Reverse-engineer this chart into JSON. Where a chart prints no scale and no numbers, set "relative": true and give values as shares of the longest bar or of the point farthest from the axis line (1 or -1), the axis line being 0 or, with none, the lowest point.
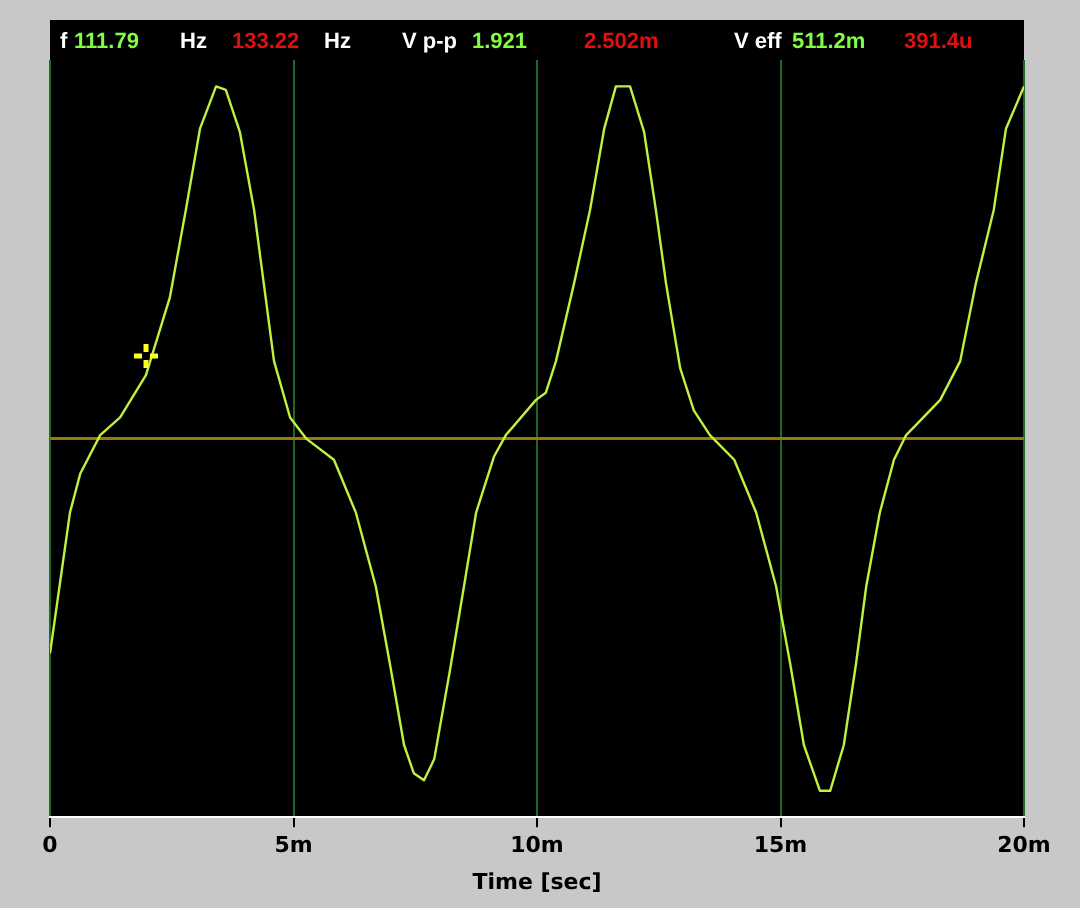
{
  "chart_data": {
    "type": "line",
    "relative": true,
    "xlabel": "Time [sec]",
    "annotations": [
      "f",
      "111.79",
      "Hz",
      "133.22",
      "Hz",
      "V p-p",
      "1.921",
      "2.502m",
      "V eff",
      "511.2m",
      "391.4u"
    ],
    "xlim": [
      0,
      20
    ],
    "xticks": [
      0,
      {
        "value": 5,
        "label": "5m"
      },
      {
        "value": 10,
        "label": "10m"
      },
      {
        "value": 15,
        "label": "15m"
      },
      {
        "value": 20,
        "label": "20m"
      }
    ],
    "grid": "x",
    "marker": "none",
    "ref_lines": [
      {
        "axis": "y",
        "value": 0,
        "color": "#9a7a10"
      }
    ],
    "line_style": "solid",
    "series": [
      {
        "color": "#c0f040",
        "x": [
          0,
          0.205,
          0.41,
          0.62,
          1.03,
          1.44,
          1.97,
          2.46,
          2.79,
          3.08,
          3.41,
          3.61,
          3.9,
          4.19,
          4.39,
          4.6,
          4.93,
          5.26,
          5.83,
          6.28,
          6.69,
          6.98,
          7.27,
          7.47,
          7.68,
          7.89,
          8.21,
          8.5,
          8.75,
          9.12,
          9.36,
          9.98,
          10.18,
          10.39,
          10.76,
          11.09,
          11.38,
          11.62,
          11.91,
          12.2,
          12.44,
          12.65,
          12.94,
          13.22,
          13.55,
          14.05,
          14.5,
          14.91,
          15.2,
          15.48,
          15.81,
          16.02,
          16.3,
          16.55,
          16.76,
          17.04,
          17.33,
          17.58,
          18.28,
          18.69,
          19.01,
          19.38,
          19.63,
          20
        ],
        "values": [
          -0.61,
          -0.41,
          -0.21,
          -0.1,
          0.01,
          0.06,
          0.18,
          0.4,
          0.65,
          0.88,
          1,
          0.99,
          0.87,
          0.65,
          0.44,
          0.22,
          0.06,
          0,
          -0.06,
          -0.21,
          -0.42,
          -0.64,
          -0.87,
          -0.95,
          -0.97,
          -0.91,
          -0.66,
          -0.42,
          -0.21,
          -0.05,
          0.01,
          0.11,
          0.13,
          0.22,
          0.44,
          0.65,
          0.88,
          1,
          1,
          0.87,
          0.65,
          0.44,
          0.2,
          0.08,
          0.01,
          -0.06,
          -0.21,
          -0.42,
          -0.64,
          -0.87,
          -1,
          -1,
          -0.87,
          -0.64,
          -0.42,
          -0.21,
          -0.06,
          0.01,
          0.11,
          0.22,
          0.44,
          0.65,
          0.88,
          1
        ]
      }
    ]
  }
}
